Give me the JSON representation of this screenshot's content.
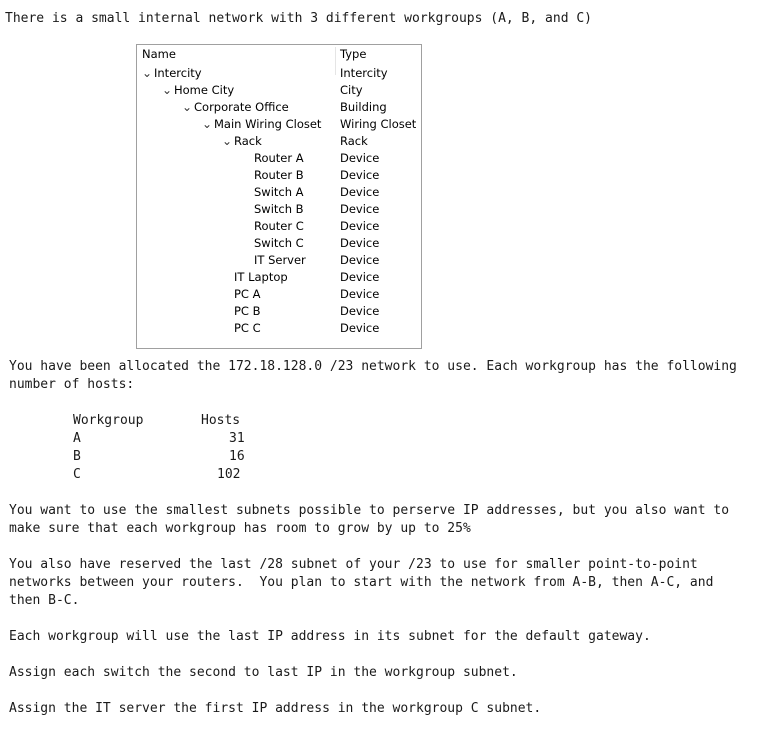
{
  "intro": "There is a small internal network with 3 different workgroups (A, B, and C)",
  "tree": {
    "headers": {
      "name": "Name",
      "type": "Type"
    },
    "rows": [
      {
        "name": "Intercity",
        "type": "Intercity",
        "level": 0,
        "expanded": true
      },
      {
        "name": "Home City",
        "type": "City",
        "level": 1,
        "expanded": true
      },
      {
        "name": "Corporate Office",
        "type": "Building",
        "level": 2,
        "expanded": true
      },
      {
        "name": "Main Wiring Closet",
        "type": "Wiring Closet",
        "level": 3,
        "expanded": true
      },
      {
        "name": "Rack",
        "type": "Rack",
        "level": 4,
        "expanded": true
      },
      {
        "name": "Router A",
        "type": "Device",
        "level": 5
      },
      {
        "name": "Router B",
        "type": "Device",
        "level": 5
      },
      {
        "name": "Switch A",
        "type": "Device",
        "level": 5
      },
      {
        "name": "Switch B",
        "type": "Device",
        "level": 5
      },
      {
        "name": "Router C",
        "type": "Device",
        "level": 5
      },
      {
        "name": "Switch C",
        "type": "Device",
        "level": 5
      },
      {
        "name": "IT Server",
        "type": "Device",
        "level": 5
      },
      {
        "name": "IT Laptop",
        "type": "Device",
        "level": 4
      },
      {
        "name": "PC A",
        "type": "Device",
        "level": 4
      },
      {
        "name": "PC B",
        "type": "Device",
        "level": 4
      },
      {
        "name": "PC C",
        "type": "Device",
        "level": 4
      }
    ]
  },
  "para1": [
    "You have been allocated the 172.18.128.0 /23 network to use. Each workgroup has the following",
    "number of hosts:"
  ],
  "hosts": {
    "headers": {
      "workgroup": "Workgroup",
      "hosts": "Hosts"
    },
    "rows": [
      {
        "wg": "A",
        "hosts": "31"
      },
      {
        "wg": "B",
        "hosts": "16"
      },
      {
        "wg": "C",
        "hosts": "102"
      }
    ]
  },
  "para2": [
    "You want to use the smallest subnets possible to perserve IP addresses, but you also want to",
    "make sure that each workgroup has room to grow by up to 25%"
  ],
  "para3": [
    "You also have reserved the last /28 subnet of your /23 to use for smaller point-to-point",
    "networks between your routers.  You plan to start with the network from A-B, then A-C, and",
    "then B-C."
  ],
  "para4": "Each workgroup will use the last IP address in its subnet for the default gateway.",
  "para5": "Assign each switch the second to last IP in the workgroup subnet.",
  "para6": "Assign the IT server the first IP address in the workgroup C subnet."
}
